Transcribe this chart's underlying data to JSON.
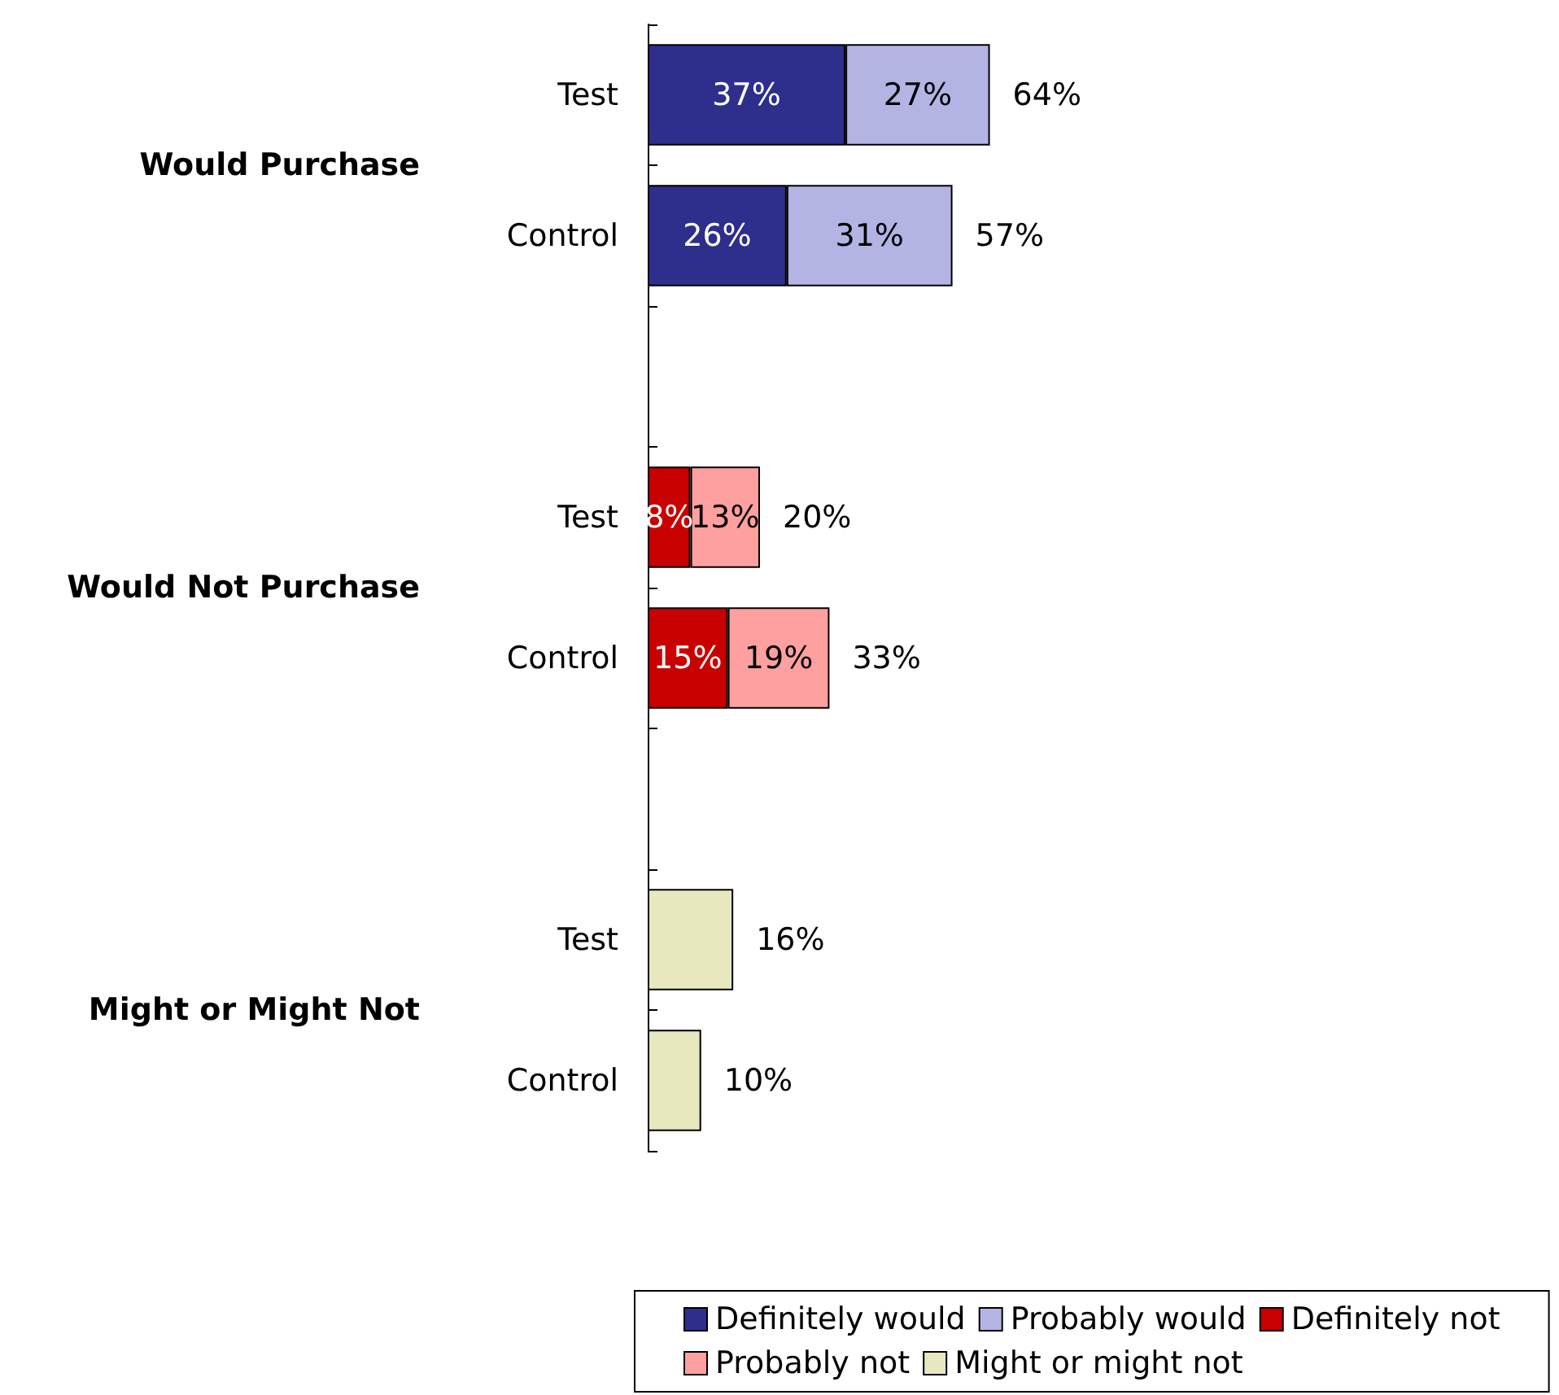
{
  "chart_data": {
    "type": "bar",
    "orientation": "horizontal",
    "stacked": true,
    "categories": [
      "Test",
      "Control",
      null,
      "Test",
      "Control",
      null,
      "Test",
      "Control"
    ],
    "series": [
      {
        "name": "Definitely would",
        "color": "#2e2e8c",
        "values": [
          37,
          26,
          null,
          null,
          null,
          null,
          null,
          null
        ],
        "value_labels": [
          "37%",
          "26%",
          null,
          null,
          null,
          null,
          null,
          null
        ]
      },
      {
        "name": "Probably would",
        "color": "#b4b4e4",
        "values": [
          27,
          31,
          null,
          null,
          null,
          null,
          null,
          null
        ],
        "value_labels": [
          "27%",
          "31%",
          null,
          null,
          null,
          null,
          null,
          null
        ]
      },
      {
        "name": "Definitely not",
        "color": "#c80000",
        "values": [
          null,
          null,
          null,
          8,
          15,
          null,
          null,
          null
        ],
        "value_labels": [
          null,
          null,
          null,
          "8%",
          "15%",
          null,
          null,
          null
        ]
      },
      {
        "name": "Probably not",
        "color": "#ffa0a0",
        "values": [
          null,
          null,
          null,
          13,
          19,
          null,
          null,
          null
        ],
        "value_labels": [
          null,
          null,
          null,
          "13%",
          "19%",
          null,
          null,
          null
        ]
      },
      {
        "name": "Might or might not",
        "color": "#e8e8c0",
        "values": [
          null,
          null,
          null,
          null,
          null,
          null,
          16,
          10
        ]
      }
    ],
    "totals": [
      "64%",
      "57%",
      null,
      "20%",
      "33%",
      null,
      "16%",
      "10%"
    ],
    "annotations": [
      "Would Purchase",
      "Would Not Purchase",
      "Might or Might Not"
    ],
    "legend": "bottom",
    "grid": false
  }
}
